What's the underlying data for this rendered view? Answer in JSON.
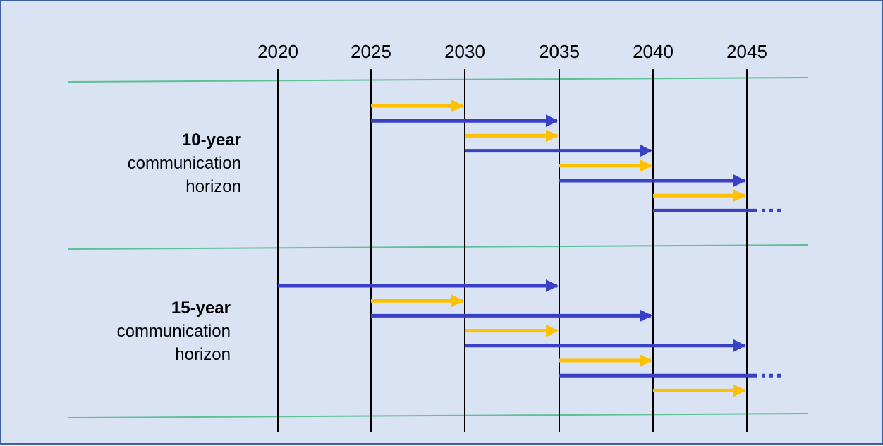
{
  "colors": {
    "background": "#dae3f3",
    "border": "#3b5fa0",
    "separator": "#5fbf96",
    "milestone_line": "#000000",
    "blue_arrow": "#3a3fc8",
    "yellow_arrow": "#ffc000"
  },
  "years": [
    "2020",
    "2025",
    "2030",
    "2035",
    "2040",
    "2045"
  ],
  "sections": [
    {
      "title": "10-year",
      "line1": "communication",
      "line2": "horizon",
      "arrows": [
        {
          "color": "yellow",
          "from": 2025,
          "to": 2030,
          "continues": false
        },
        {
          "color": "blue",
          "from": 2025,
          "to": 2035,
          "continues": false
        },
        {
          "color": "yellow",
          "from": 2030,
          "to": 2035,
          "continues": false
        },
        {
          "color": "blue",
          "from": 2030,
          "to": 2040,
          "continues": false
        },
        {
          "color": "yellow",
          "from": 2035,
          "to": 2040,
          "continues": false
        },
        {
          "color": "blue",
          "from": 2035,
          "to": 2045,
          "continues": false
        },
        {
          "color": "yellow",
          "from": 2040,
          "to": 2045,
          "continues": false
        },
        {
          "color": "blue",
          "from": 2040,
          "to": 2045,
          "continues": true
        }
      ]
    },
    {
      "title": "15-year",
      "line1": "communication",
      "line2": "horizon",
      "arrows": [
        {
          "color": "blue",
          "from": 2020,
          "to": 2035,
          "continues": false
        },
        {
          "color": "yellow",
          "from": 2025,
          "to": 2030,
          "continues": false
        },
        {
          "color": "blue",
          "from": 2025,
          "to": 2040,
          "continues": false
        },
        {
          "color": "yellow",
          "from": 2030,
          "to": 2035,
          "continues": false
        },
        {
          "color": "blue",
          "from": 2030,
          "to": 2045,
          "continues": false
        },
        {
          "color": "yellow",
          "from": 2035,
          "to": 2040,
          "continues": false
        },
        {
          "color": "blue",
          "from": 2035,
          "to": 2045,
          "continues": true
        },
        {
          "color": "yellow",
          "from": 2040,
          "to": 2045,
          "continues": false
        }
      ]
    }
  ]
}
